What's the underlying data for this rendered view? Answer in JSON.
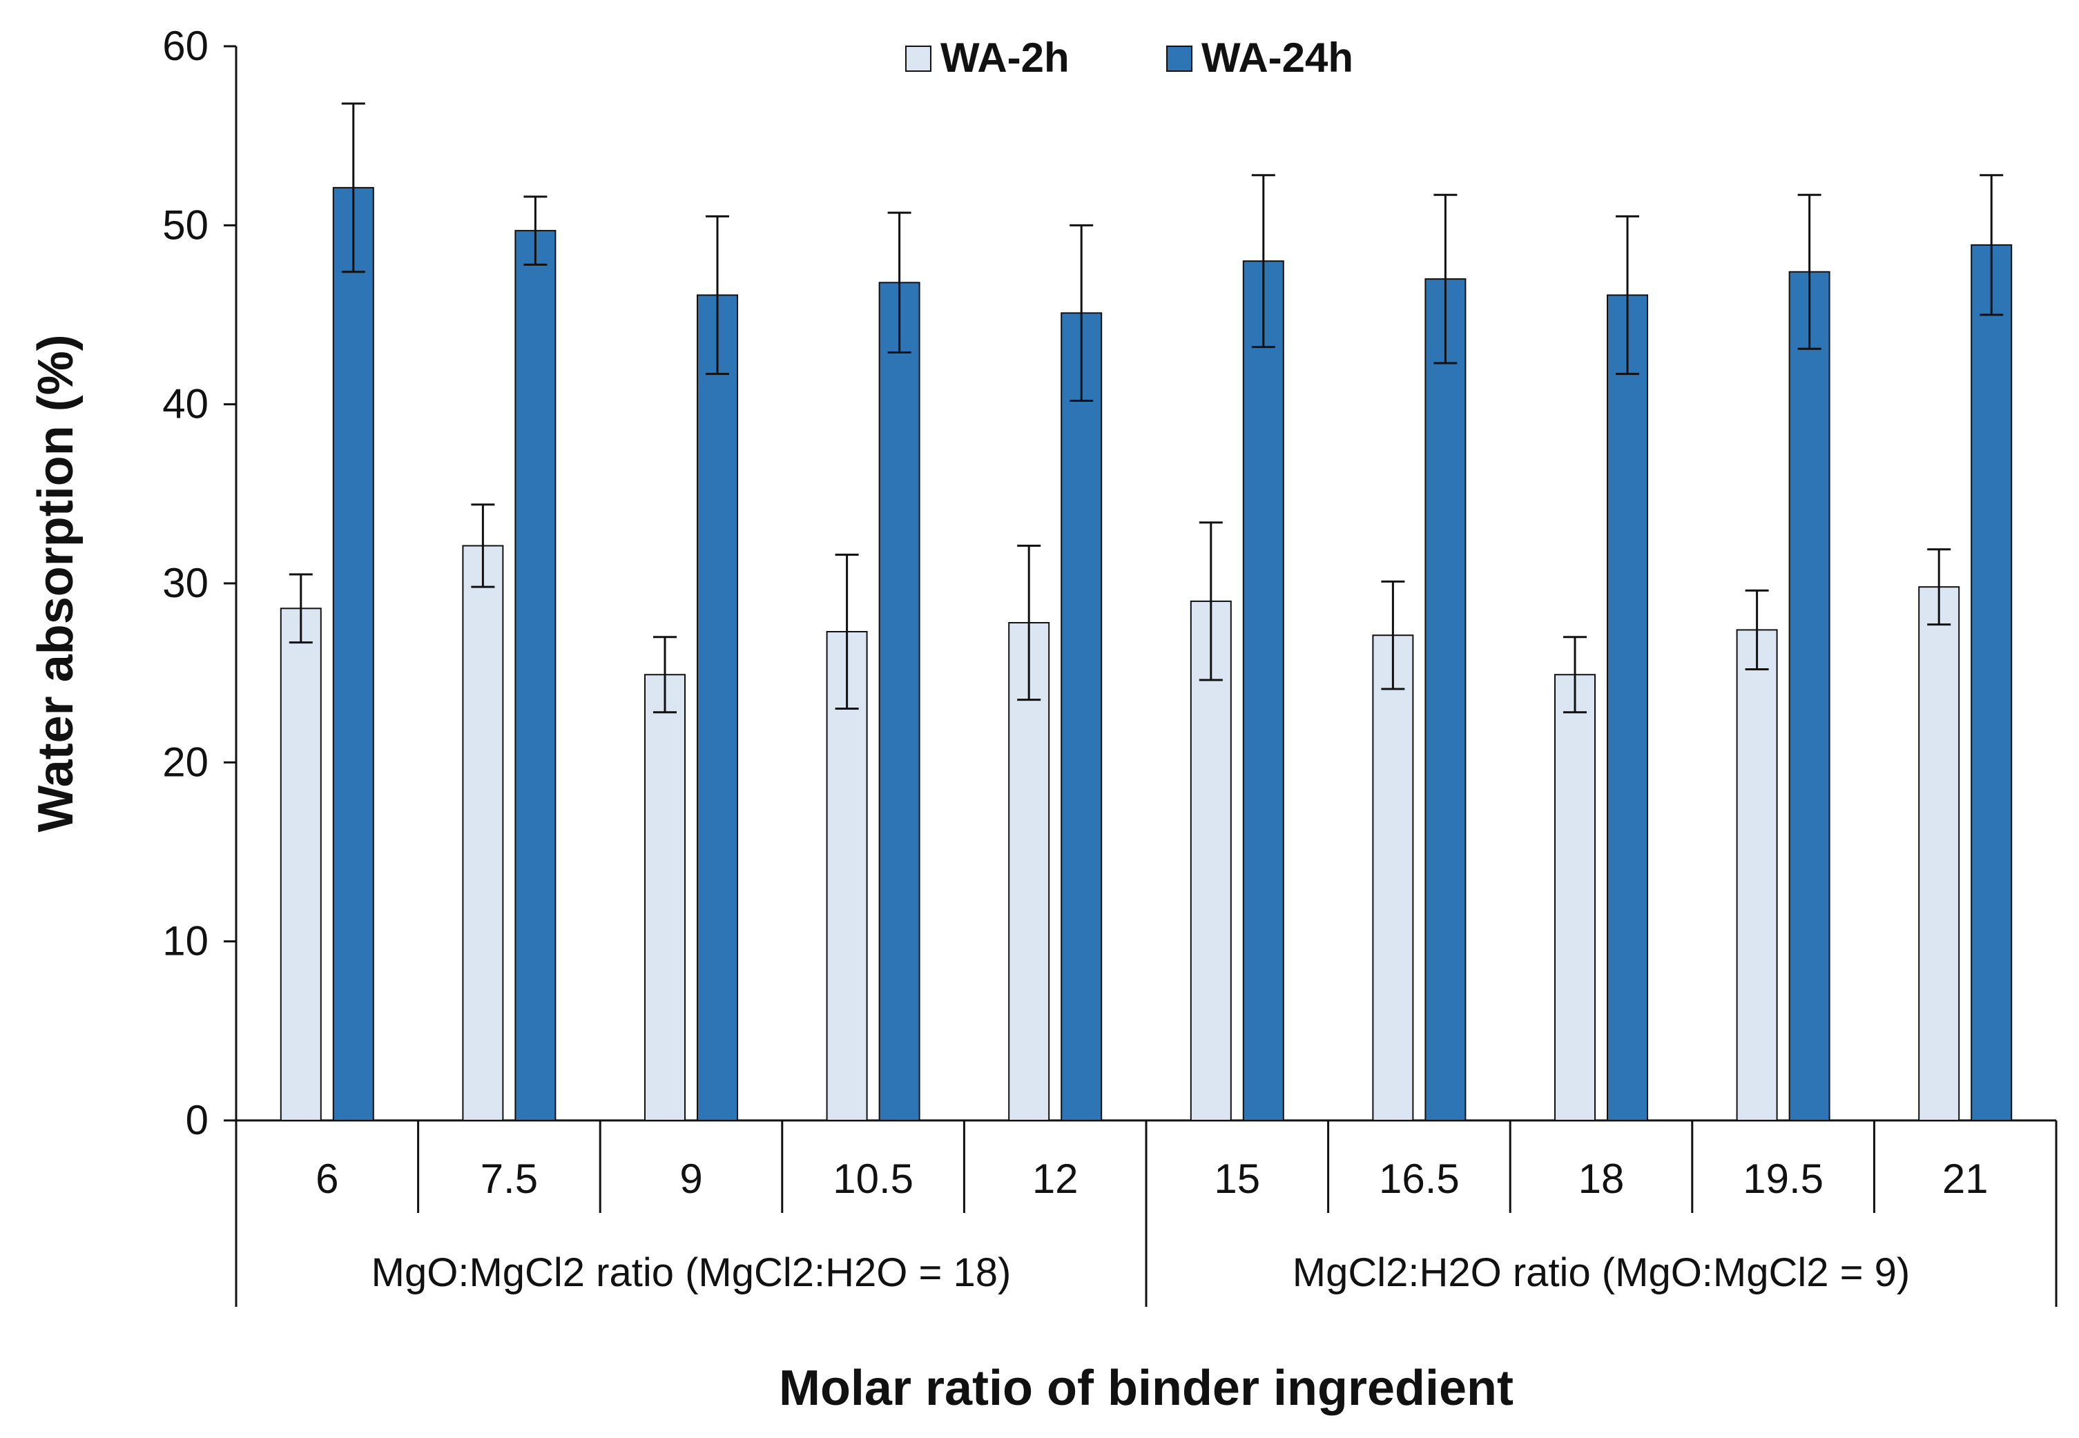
{
  "chart_data": {
    "type": "bar",
    "title": "",
    "xlabel": "Molar ratio of binder ingredient",
    "ylabel": "Water absorption (%)",
    "ylim": [
      0,
      60
    ],
    "yticks": [
      0,
      10,
      20,
      30,
      40,
      50,
      60
    ],
    "grid": false,
    "legend_position": "top-center",
    "categories": [
      "6",
      "7.5",
      "9",
      "10.5",
      "12",
      "15",
      "16.5",
      "18",
      "19.5",
      "21"
    ],
    "groups": [
      {
        "label": "MgO:MgCl2 ratio (MgCl2:H2O = 18)",
        "categories": [
          "6",
          "7.5",
          "9",
          "10.5",
          "12"
        ]
      },
      {
        "label": "MgCl2:H2O ratio (MgO:MgCl2 = 9)",
        "categories": [
          "15",
          "16.5",
          "18",
          "19.5",
          "21"
        ]
      }
    ],
    "series": [
      {
        "name": "WA-2h",
        "color": "#dce6f2",
        "values": [
          28.6,
          32.1,
          24.9,
          27.3,
          27.8,
          29.0,
          27.1,
          24.9,
          27.4,
          29.8
        ],
        "errors": [
          1.9,
          2.3,
          2.1,
          4.3,
          4.3,
          4.4,
          3.0,
          2.1,
          2.2,
          2.1
        ]
      },
      {
        "name": "WA-24h",
        "color": "#2e75b6",
        "values": [
          52.1,
          49.7,
          46.1,
          46.8,
          45.1,
          48.0,
          47.0,
          46.1,
          47.4,
          48.9
        ],
        "errors": [
          4.7,
          1.9,
          4.4,
          3.9,
          4.9,
          4.8,
          4.7,
          4.4,
          4.3,
          3.9
        ]
      }
    ]
  }
}
